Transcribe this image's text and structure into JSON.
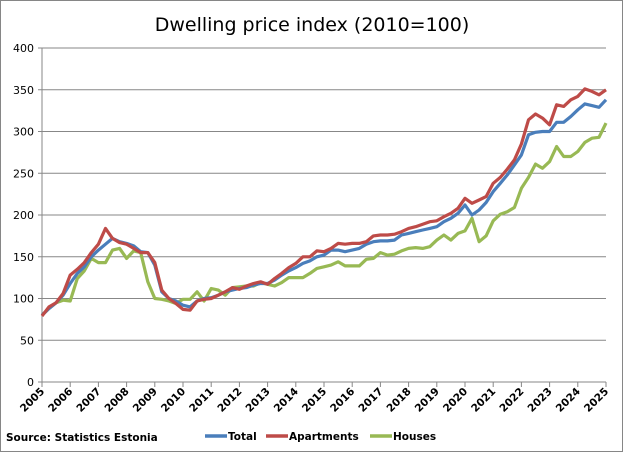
{
  "chart_data": {
    "type": "line",
    "title": "Dwelling price index (2010=100)",
    "source": "Source: Statistics Estonia",
    "xlabel": "",
    "ylabel": "",
    "x_start": 2005,
    "x_step": 0.25,
    "xlim": [
      2005,
      2025
    ],
    "ylim": [
      0,
      400
    ],
    "yticks": [
      0,
      50,
      100,
      150,
      200,
      250,
      300,
      350,
      400
    ],
    "xticks": [
      "2005",
      "2006",
      "2007",
      "2008",
      "2009",
      "2010",
      "2011",
      "2012",
      "2013",
      "2014",
      "2015",
      "2016",
      "2017",
      "2018",
      "2019",
      "2020",
      "2021",
      "2022",
      "2023",
      "2024",
      "2025"
    ],
    "grid": true,
    "legend_position": "bottom",
    "series": [
      {
        "name": "Total",
        "color": "#4a7ebb",
        "values": [
          80,
          88,
          95,
          104,
          118,
          130,
          138,
          150,
          158,
          165,
          172,
          168,
          166,
          163,
          156,
          155,
          140,
          108,
          100,
          97,
          92,
          90,
          97,
          100,
          101,
          104,
          108,
          110,
          112,
          113,
          116,
          118,
          118,
          122,
          128,
          133,
          137,
          142,
          145,
          150,
          152,
          158,
          158,
          156,
          158,
          160,
          165,
          168,
          169,
          169,
          170,
          176,
          178,
          180,
          182,
          184,
          186,
          192,
          196,
          202,
          212,
          200,
          206,
          215,
          228,
          238,
          248,
          260,
          272,
          296,
          299,
          300,
          300,
          311,
          311,
          318,
          326,
          333,
          331,
          329,
          338
        ]
      },
      {
        "name": "Apartments",
        "color": "#be4b48",
        "values": [
          79,
          90,
          95,
          106,
          128,
          135,
          143,
          155,
          165,
          184,
          172,
          167,
          165,
          160,
          155,
          155,
          143,
          110,
          100,
          94,
          87,
          86,
          97,
          99,
          100,
          104,
          108,
          113,
          111,
          115,
          118,
          120,
          117,
          124,
          130,
          137,
          142,
          150,
          150,
          157,
          156,
          160,
          166,
          165,
          166,
          166,
          168,
          175,
          176,
          176,
          177,
          180,
          184,
          186,
          189,
          192,
          193,
          198,
          202,
          208,
          220,
          214,
          218,
          222,
          238,
          245,
          255,
          266,
          285,
          314,
          321,
          316,
          308,
          332,
          330,
          338,
          342,
          351,
          348,
          344,
          350
        ]
      },
      {
        "name": "Houses",
        "color": "#98b954",
        "values": [
          80,
          88,
          95,
          98,
          97,
          124,
          133,
          148,
          143,
          143,
          158,
          160,
          148,
          157,
          155,
          120,
          100,
          99,
          97,
          94,
          99,
          99,
          108,
          97,
          112,
          110,
          104,
          113,
          114,
          115,
          115,
          119,
          117,
          115,
          119,
          125,
          125,
          125,
          130,
          136,
          138,
          140,
          144,
          139,
          139,
          139,
          147,
          148,
          155,
          152,
          153,
          157,
          160,
          161,
          160,
          162,
          170,
          176,
          170,
          178,
          181,
          196,
          168,
          175,
          193,
          201,
          204,
          209,
          232,
          245,
          261,
          256,
          264,
          282,
          270,
          270,
          276,
          287,
          292,
          293,
          310
        ]
      }
    ]
  }
}
